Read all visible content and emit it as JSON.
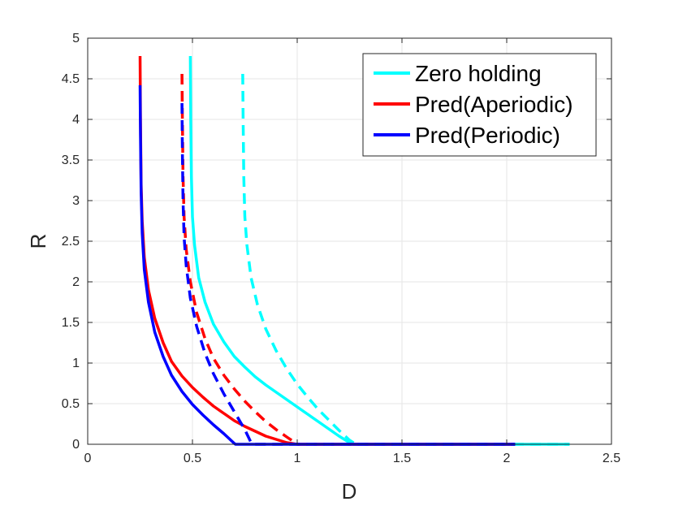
{
  "chart_data": {
    "type": "line",
    "title": "",
    "xlabel": "D",
    "ylabel": "R",
    "xlim": [
      0,
      2.5
    ],
    "ylim": [
      0,
      5
    ],
    "grid": true,
    "legend_position": "top-right",
    "x_ticks": [
      "0",
      "0.5",
      "1",
      "1.5",
      "2",
      "2.5"
    ],
    "y_ticks": [
      "0",
      "0.5",
      "1",
      "1.5",
      "2",
      "2.5",
      "3",
      "3.5",
      "4",
      "4.5",
      "5"
    ],
    "legend": [
      {
        "name": "Zero holding",
        "color": "#00ffff"
      },
      {
        "name": "Pred(Aperiodic)",
        "color": "#ff0000"
      },
      {
        "name": "Pred(Periodic)",
        "color": "#0000ff"
      }
    ],
    "series": [
      {
        "name": "Zero holding",
        "style": "solid",
        "color": "#00ffff",
        "points": [
          [
            0.49,
            4.78
          ],
          [
            0.492,
            4.0
          ],
          [
            0.495,
            3.3
          ],
          [
            0.5,
            2.8
          ],
          [
            0.51,
            2.45
          ],
          [
            0.53,
            2.05
          ],
          [
            0.56,
            1.75
          ],
          [
            0.6,
            1.48
          ],
          [
            0.65,
            1.26
          ],
          [
            0.7,
            1.08
          ],
          [
            0.75,
            0.95
          ],
          [
            0.8,
            0.83
          ],
          [
            0.85,
            0.73
          ],
          [
            0.9,
            0.64
          ],
          [
            0.95,
            0.55
          ],
          [
            1.0,
            0.46
          ],
          [
            1.05,
            0.37
          ],
          [
            1.1,
            0.28
          ],
          [
            1.15,
            0.19
          ],
          [
            1.2,
            0.1
          ],
          [
            1.25,
            0.02
          ],
          [
            1.27,
            0.0
          ],
          [
            1.5,
            0.0
          ],
          [
            2.0,
            0.0
          ],
          [
            2.3,
            0.0
          ]
        ]
      },
      {
        "name": "Zero holding (dashed)",
        "style": "dashed",
        "color": "#00ffff",
        "points": [
          [
            0.74,
            4.56
          ],
          [
            0.742,
            4.0
          ],
          [
            0.745,
            3.3
          ],
          [
            0.75,
            2.8
          ],
          [
            0.76,
            2.45
          ],
          [
            0.78,
            2.05
          ],
          [
            0.81,
            1.72
          ],
          [
            0.85,
            1.42
          ],
          [
            0.9,
            1.15
          ],
          [
            0.95,
            0.93
          ],
          [
            1.0,
            0.74
          ],
          [
            1.05,
            0.58
          ],
          [
            1.1,
            0.43
          ],
          [
            1.15,
            0.3
          ],
          [
            1.2,
            0.17
          ],
          [
            1.25,
            0.05
          ],
          [
            1.28,
            0.0
          ],
          [
            1.5,
            0.0
          ],
          [
            2.0,
            0.0
          ],
          [
            2.3,
            0.0
          ]
        ]
      },
      {
        "name": "Pred(Aperiodic)",
        "style": "solid",
        "color": "#ff0000",
        "points": [
          [
            0.25,
            4.78
          ],
          [
            0.252,
            4.0
          ],
          [
            0.255,
            3.2
          ],
          [
            0.26,
            2.75
          ],
          [
            0.27,
            2.3
          ],
          [
            0.29,
            1.9
          ],
          [
            0.32,
            1.55
          ],
          [
            0.36,
            1.25
          ],
          [
            0.4,
            1.02
          ],
          [
            0.45,
            0.84
          ],
          [
            0.5,
            0.7
          ],
          [
            0.55,
            0.58
          ],
          [
            0.6,
            0.47
          ],
          [
            0.65,
            0.38
          ],
          [
            0.7,
            0.29
          ],
          [
            0.75,
            0.22
          ],
          [
            0.8,
            0.16
          ],
          [
            0.85,
            0.1
          ],
          [
            0.9,
            0.06
          ],
          [
            0.95,
            0.02
          ],
          [
            1.0,
            0.0
          ],
          [
            1.5,
            0.0
          ],
          [
            2.0,
            0.0
          ],
          [
            2.04,
            0.0
          ]
        ]
      },
      {
        "name": "Pred(Aperiodic) (dashed)",
        "style": "dashed",
        "color": "#ff0000",
        "points": [
          [
            0.45,
            4.56
          ],
          [
            0.452,
            4.0
          ],
          [
            0.455,
            3.3
          ],
          [
            0.46,
            2.8
          ],
          [
            0.47,
            2.4
          ],
          [
            0.49,
            2.0
          ],
          [
            0.52,
            1.62
          ],
          [
            0.56,
            1.3
          ],
          [
            0.6,
            1.06
          ],
          [
            0.65,
            0.85
          ],
          [
            0.7,
            0.68
          ],
          [
            0.75,
            0.53
          ],
          [
            0.8,
            0.4
          ],
          [
            0.85,
            0.28
          ],
          [
            0.9,
            0.18
          ],
          [
            0.95,
            0.09
          ],
          [
            0.99,
            0.02
          ],
          [
            1.0,
            0.0
          ],
          [
            1.5,
            0.0
          ],
          [
            2.0,
            0.0
          ],
          [
            2.04,
            0.0
          ]
        ]
      },
      {
        "name": "Pred(Periodic)",
        "style": "solid",
        "color": "#0000ff",
        "points": [
          [
            0.25,
            4.42
          ],
          [
            0.252,
            3.8
          ],
          [
            0.255,
            3.1
          ],
          [
            0.26,
            2.6
          ],
          [
            0.27,
            2.15
          ],
          [
            0.29,
            1.75
          ],
          [
            0.32,
            1.38
          ],
          [
            0.36,
            1.08
          ],
          [
            0.4,
            0.85
          ],
          [
            0.45,
            0.65
          ],
          [
            0.5,
            0.49
          ],
          [
            0.55,
            0.36
          ],
          [
            0.6,
            0.24
          ],
          [
            0.65,
            0.13
          ],
          [
            0.7,
            0.01
          ],
          [
            0.705,
            0.0
          ],
          [
            1.0,
            0.0
          ],
          [
            1.5,
            0.0
          ],
          [
            2.0,
            0.0
          ],
          [
            2.04,
            0.0
          ]
        ]
      },
      {
        "name": "Pred(Periodic) (dashed)",
        "style": "dashed",
        "color": "#0000ff",
        "points": [
          [
            0.45,
            4.2
          ],
          [
            0.452,
            3.6
          ],
          [
            0.455,
            3.0
          ],
          [
            0.46,
            2.55
          ],
          [
            0.47,
            2.2
          ],
          [
            0.49,
            1.8
          ],
          [
            0.52,
            1.45
          ],
          [
            0.56,
            1.12
          ],
          [
            0.6,
            0.87
          ],
          [
            0.65,
            0.62
          ],
          [
            0.7,
            0.4
          ],
          [
            0.75,
            0.18
          ],
          [
            0.78,
            0.02
          ],
          [
            0.785,
            0.0
          ],
          [
            1.0,
            0.0
          ],
          [
            1.5,
            0.0
          ],
          [
            2.0,
            0.0
          ],
          [
            2.04,
            0.0
          ]
        ]
      }
    ]
  }
}
